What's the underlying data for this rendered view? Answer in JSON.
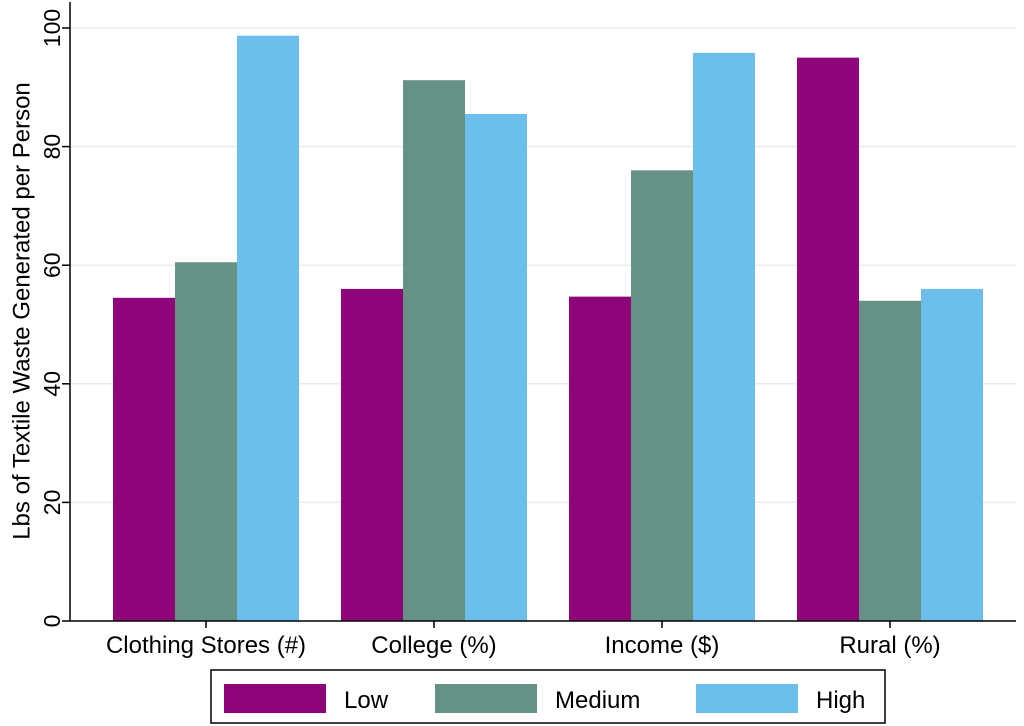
{
  "chart_data": {
    "type": "bar",
    "title": "",
    "xlabel": "",
    "ylabel": "Lbs of Textile Waste Generated per Person",
    "ylim": [
      0,
      100
    ],
    "yticks": [
      0,
      20,
      40,
      60,
      80,
      100
    ],
    "grid": true,
    "legend_position": "bottom",
    "categories": [
      "Clothing Stores (#)",
      "College (%)",
      "Income ($)",
      "Rural (%)"
    ],
    "series": [
      {
        "name": "Low",
        "color": "#8e0579",
        "values": [
          54.5,
          56.0,
          54.7,
          95.0
        ]
      },
      {
        "name": "Medium",
        "color": "#659186",
        "values": [
          60.5,
          91.2,
          76.0,
          54.0
        ]
      },
      {
        "name": "High",
        "color": "#6dbfeb",
        "values": [
          98.7,
          85.5,
          95.8,
          56.0
        ]
      }
    ]
  }
}
